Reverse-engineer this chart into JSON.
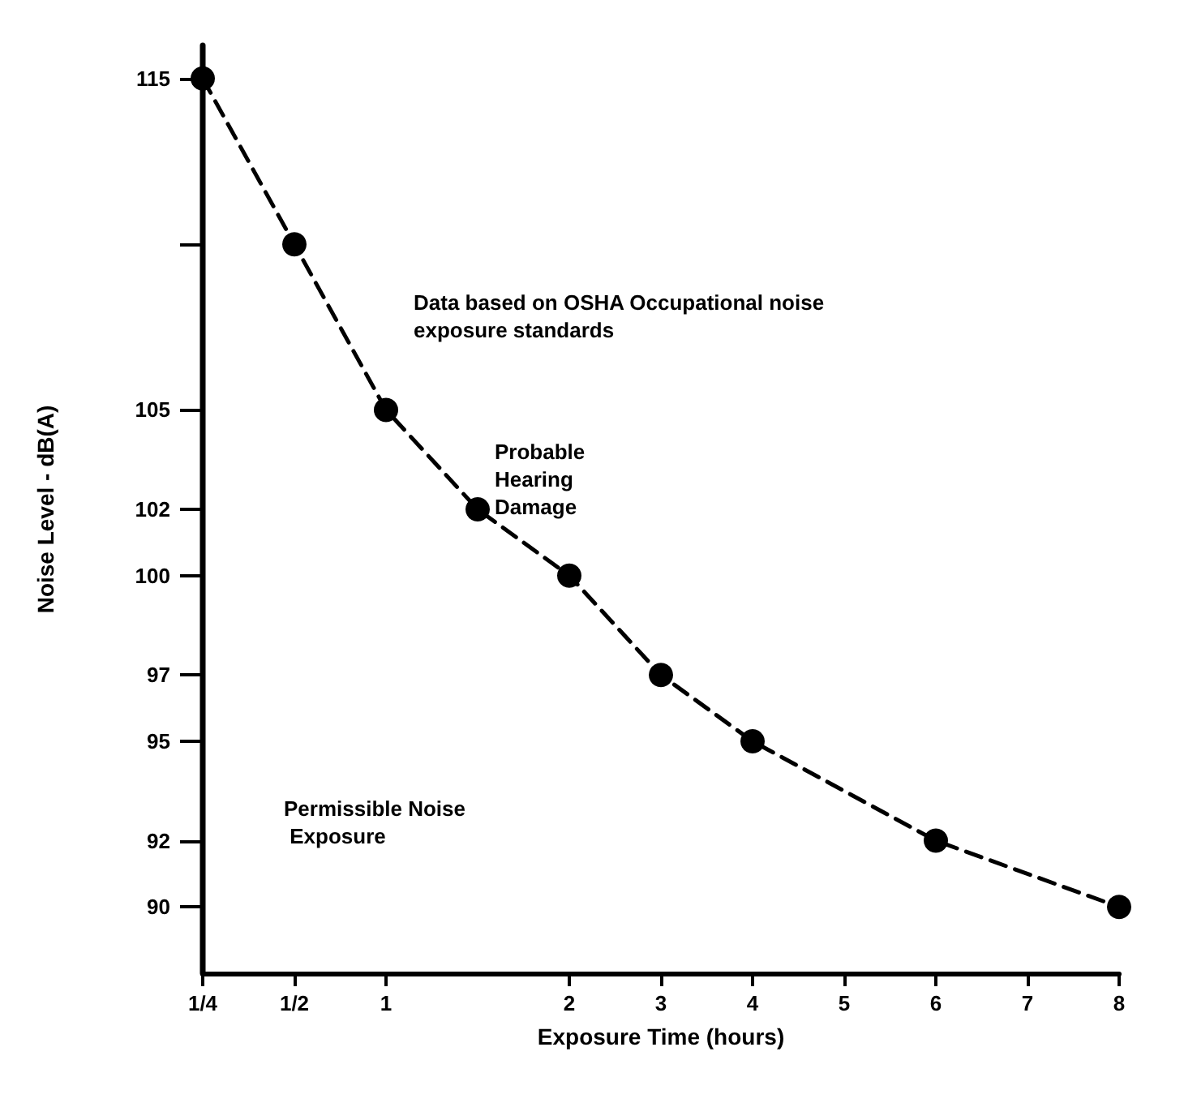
{
  "chart_data": {
    "type": "line",
    "xlabel": "Exposure Time (hours)",
    "ylabel": "Noise Level - dB(A)",
    "categories": [
      "1/4",
      "1/2",
      "1",
      null,
      "2",
      "3",
      "4",
      "5",
      "6",
      "7",
      "8"
    ],
    "series": [
      {
        "color": "#000000",
        "values": [
          115,
          110,
          105,
          102,
          100,
          97,
          95,
          null,
          92,
          null,
          90
        ]
      }
    ],
    "ylim": [
      88,
      116
    ],
    "yticks": [
      90,
      92,
      95,
      97,
      100,
      102,
      105,
      {
        "value": 110,
        "label": null
      },
      115
    ],
    "grid": false,
    "marker": "circle",
    "line_style": "dashed",
    "annotations": [
      "Data based on OSHA Occupational noise exposure standards",
      "Probable Hearing Damage",
      "Permissible Noise Exposure"
    ]
  }
}
